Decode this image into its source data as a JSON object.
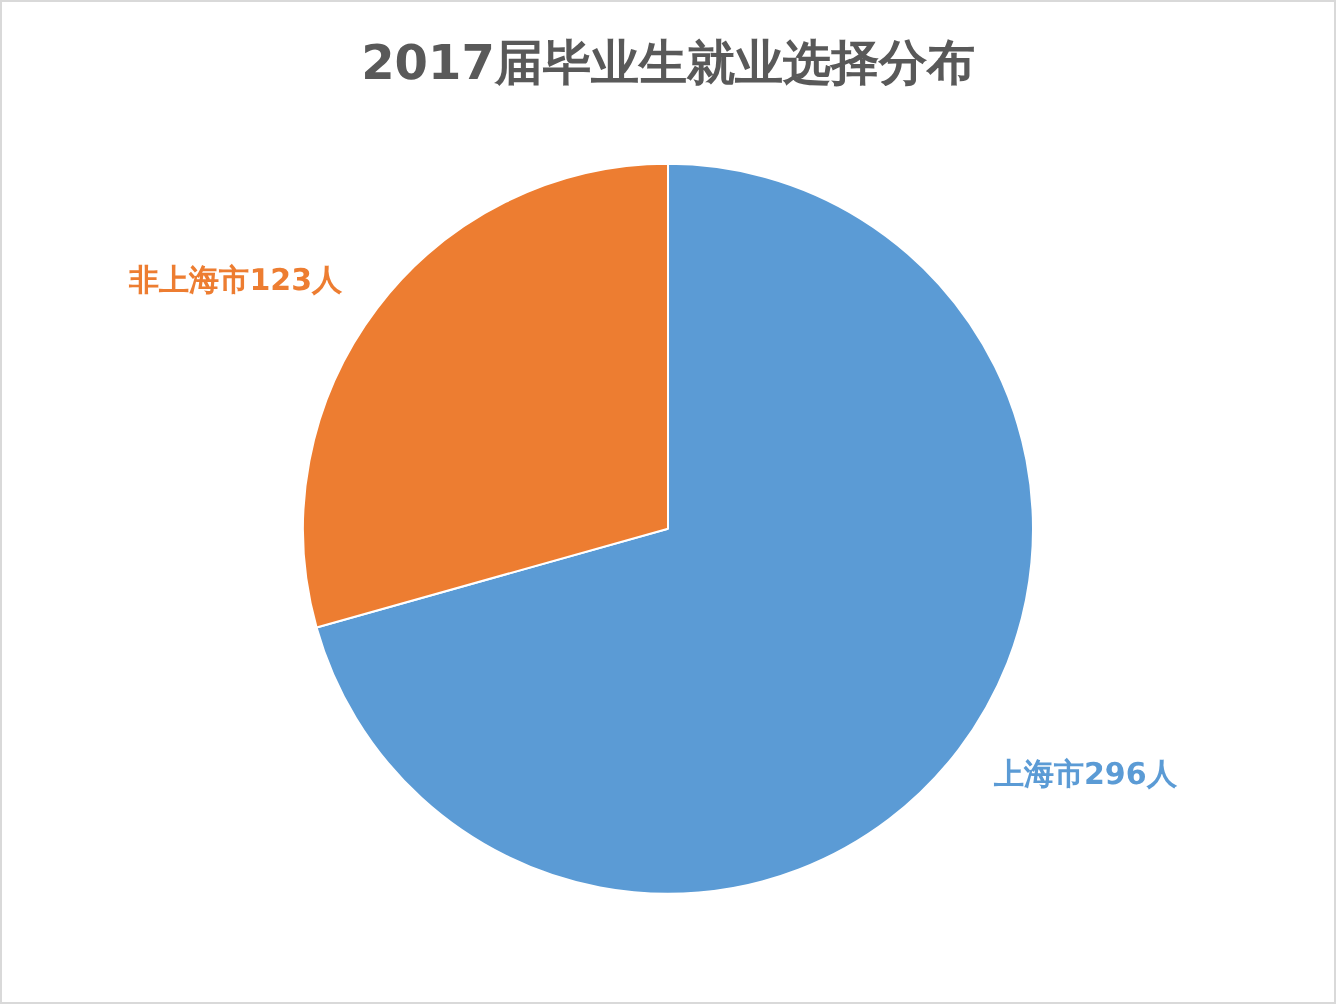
{
  "chart_data": {
    "type": "pie",
    "title": "2017届毕业生就业选择分布",
    "categories": [
      "上海市",
      "非上海市"
    ],
    "values": [
      296,
      123
    ],
    "colors": [
      "#5b9bd5",
      "#ed7d31"
    ],
    "value_labels": [
      "296人",
      "123人"
    ],
    "legend": false
  }
}
